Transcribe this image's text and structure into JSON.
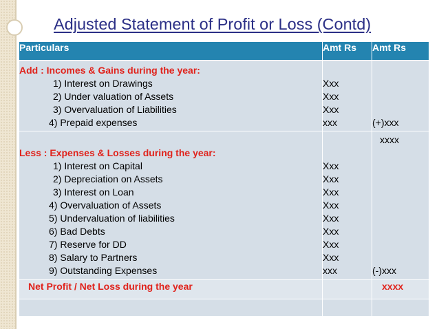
{
  "title": "Adjusted Statement of Profit or Loss (Contd)",
  "header": {
    "particulars": "Particulars",
    "amt1": "Amt Rs",
    "amt2": "Amt Rs"
  },
  "add_section": {
    "heading": "Add : Incomes & Gains during the year:",
    "items": [
      "1) Interest on Drawings",
      "2) Under valuation of Assets",
      "3) Overvaluation of Liabilities",
      "4) Prepaid expenses"
    ],
    "amounts": [
      "Xxx",
      "Xxx",
      "Xxx",
      "xxx"
    ],
    "total": "(+)xxx"
  },
  "less_section": {
    "carry": "xxxx",
    "heading": "Less :  Expenses & Losses during the year:",
    "items": [
      "1) Interest on Capital",
      "2) Depreciation on Assets",
      "3) Interest on Loan",
      "4) Overvaluation of Assets",
      "5) Undervaluation of liabilities",
      "6) Bad Debts",
      "7) Reserve for DD",
      "8) Salary to Partners",
      "9) Outstanding Expenses"
    ],
    "amounts": [
      "Xxx",
      "Xxx",
      "Xxx",
      "Xxx",
      "Xxx",
      "Xxx",
      "Xxx",
      "Xxx",
      "xxx"
    ],
    "total": "(-)xxx"
  },
  "net": {
    "label": "Net Profit / Net Loss during the year",
    "amount": "xxxx"
  },
  "colors": {
    "title": "#2b2f86",
    "header_bg": "#2484b0",
    "row_bg": "#d5dee7",
    "accent_red": "#e0231c"
  }
}
